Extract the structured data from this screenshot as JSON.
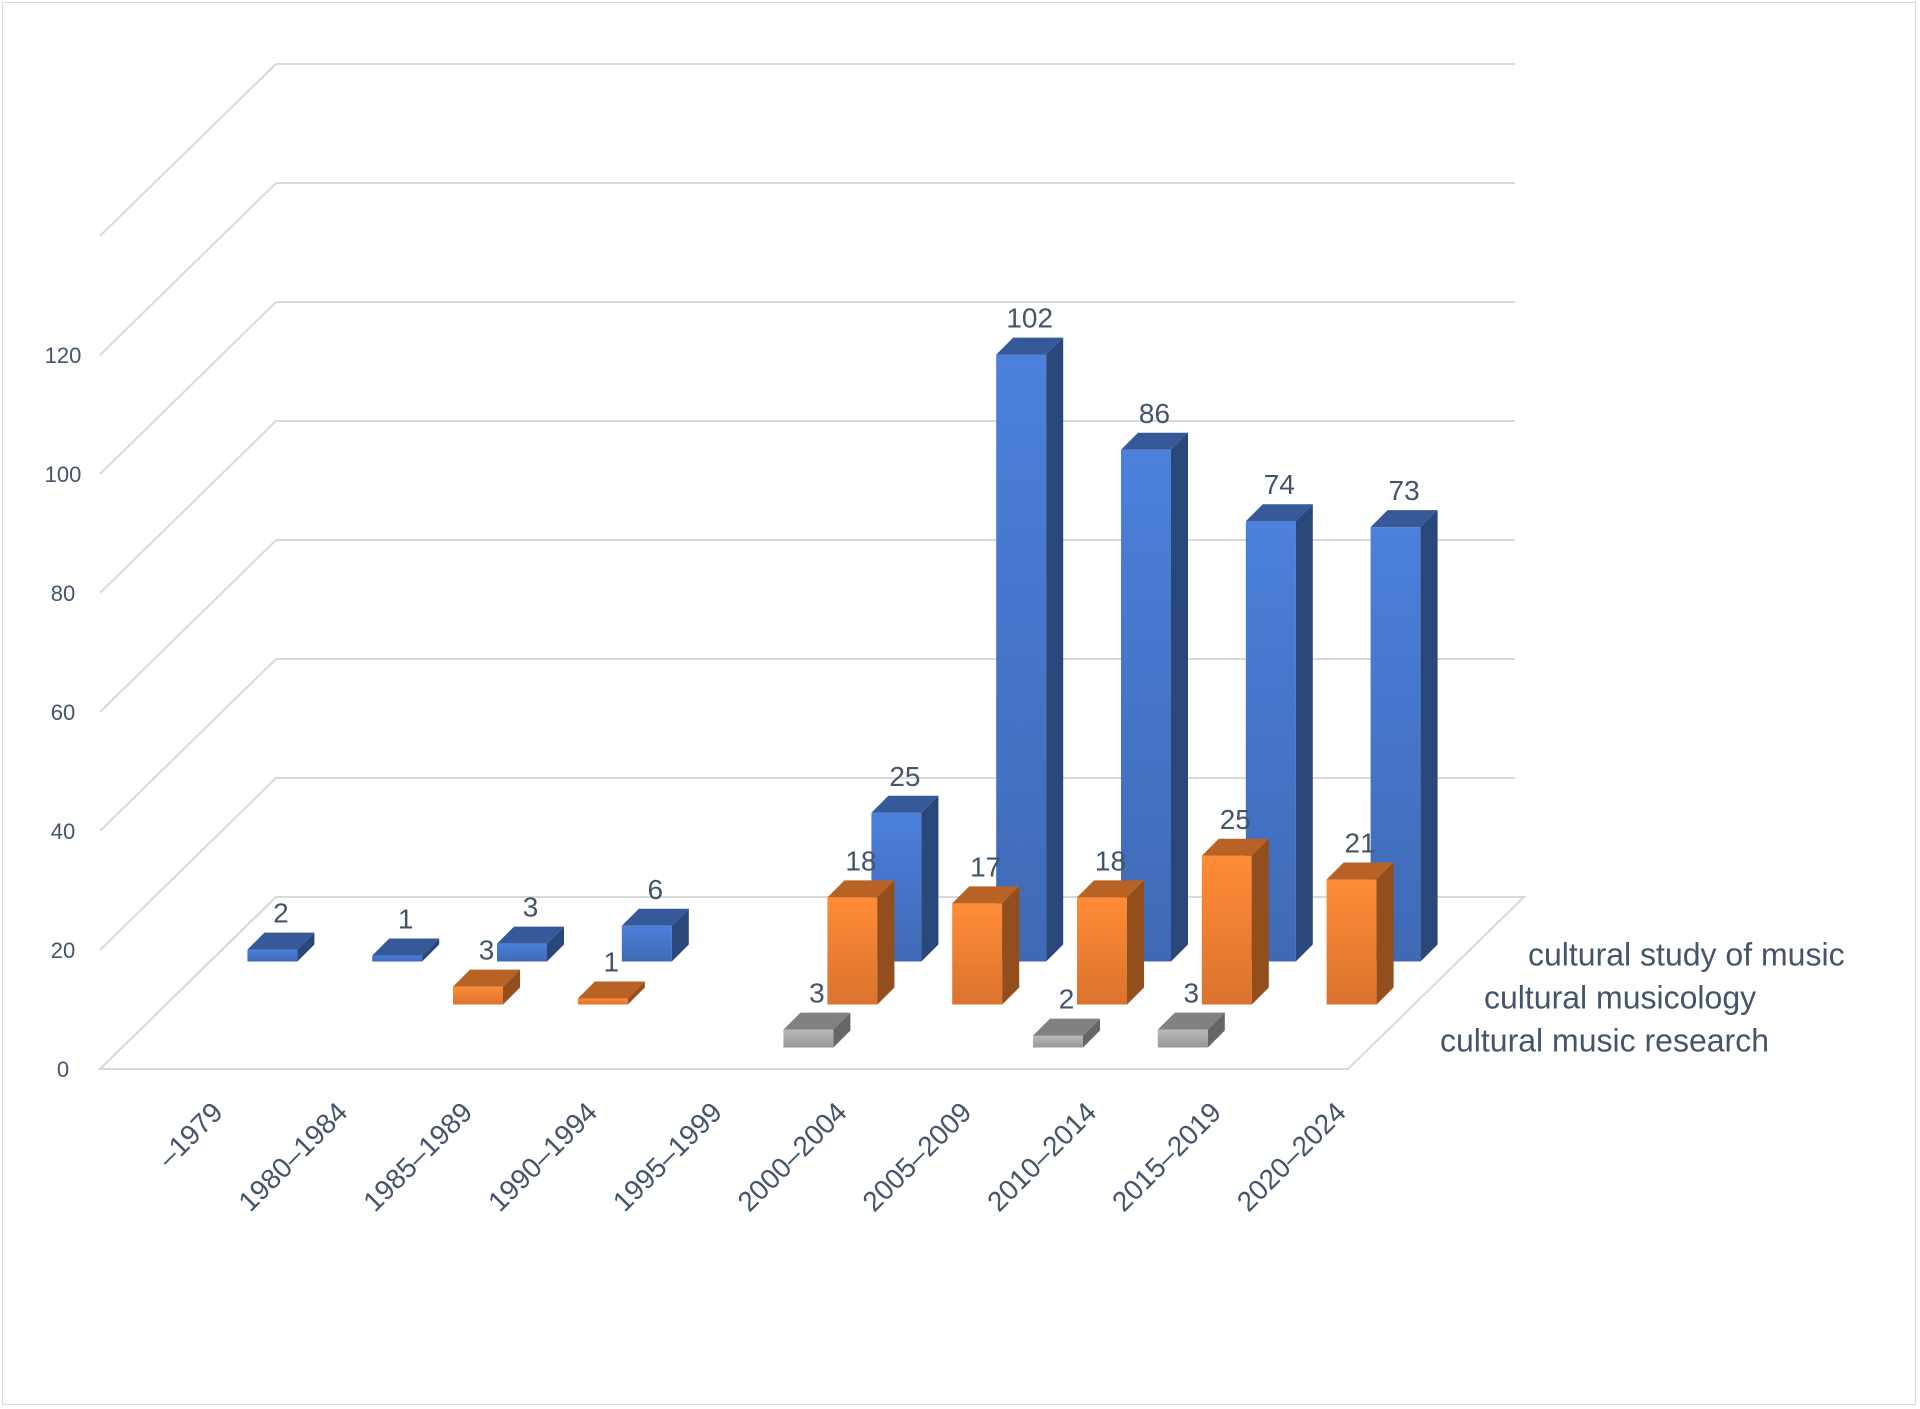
{
  "chart_data": {
    "type": "bar",
    "variant": "3d-column",
    "categories": [
      "–1979",
      "1980–1984",
      "1985–1989",
      "1990–1994",
      "1995–1999",
      "2000–2004",
      "2005–2009",
      "2010–2014",
      "2015–2019",
      "2020–2024"
    ],
    "series": [
      {
        "name": "cultural study of music",
        "color": "#4472c4",
        "values": [
          2,
          1,
          3,
          6,
          null,
          25,
          102,
          86,
          74,
          73
        ]
      },
      {
        "name": "cultural musicology",
        "color": "#ed7d31",
        "values": [
          null,
          null,
          3,
          1,
          null,
          18,
          17,
          18,
          25,
          21
        ]
      },
      {
        "name": "cultural music research",
        "color": "#a5a5a5",
        "values": [
          null,
          null,
          null,
          null,
          null,
          3,
          null,
          2,
          3,
          null
        ]
      }
    ],
    "yticks": [
      "0",
      "20",
      "40",
      "60",
      "80",
      "100",
      "120"
    ],
    "ylim": [
      0,
      140
    ],
    "grid": true
  }
}
